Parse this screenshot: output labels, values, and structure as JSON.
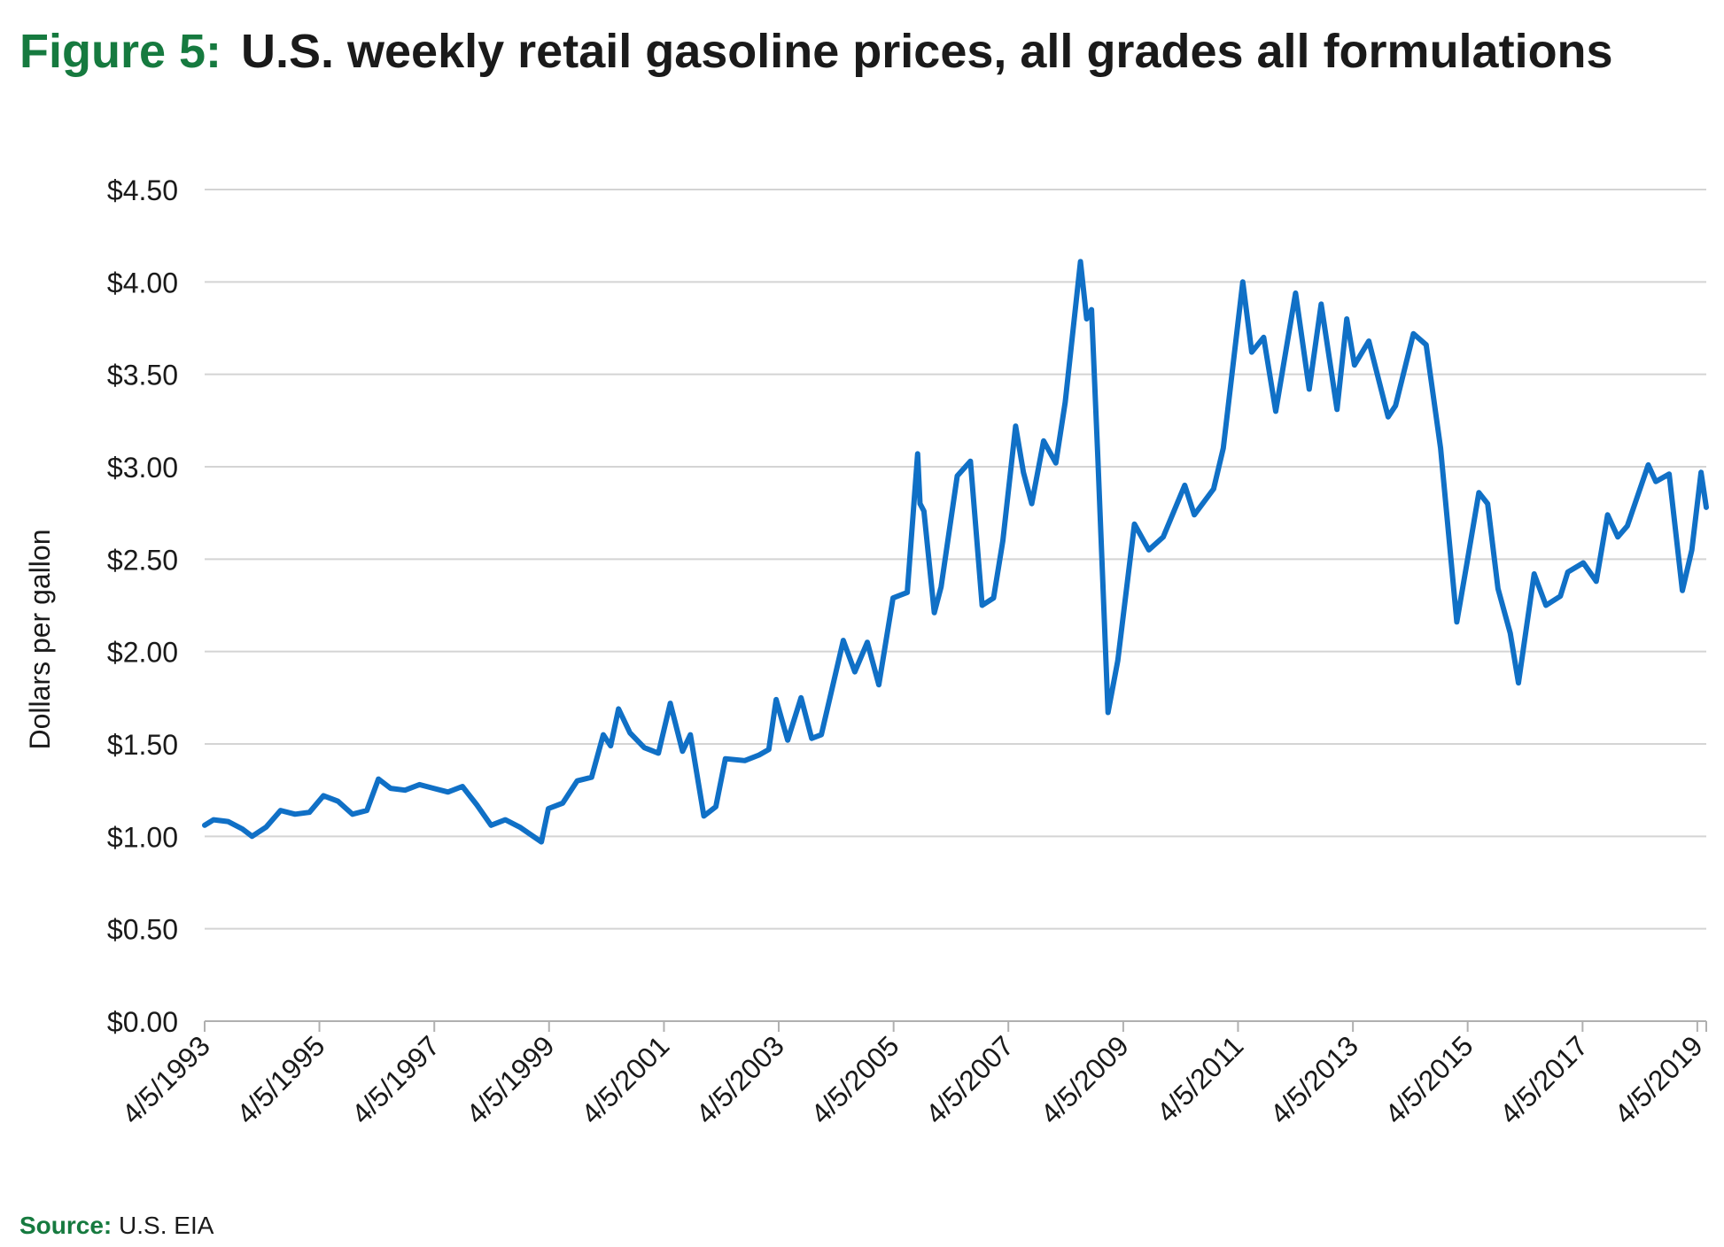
{
  "header": {
    "figure_label": "Figure 5:",
    "title": "U.S. weekly retail gasoline prices, all grades all formulations"
  },
  "footer": {
    "source_label": "Source:",
    "source_text": "U.S. EIA"
  },
  "colors": {
    "accent_green": "#167a3f",
    "series_blue": "#1070c6",
    "grid": "#d4d4d4",
    "axis": "#b0b0b0",
    "text": "#1a1a1a"
  },
  "chart_data": {
    "type": "line",
    "title": "U.S. weekly retail gasoline prices, all grades all formulations",
    "ylabel": "Dollars per gallon",
    "xlabel": "",
    "ylim": [
      0,
      4.5
    ],
    "xlim": [
      "1993-04-05",
      "2019-06-01"
    ],
    "grid": "horizontal",
    "y_ticks": [
      0,
      0.5,
      1.0,
      1.5,
      2.0,
      2.5,
      3.0,
      3.5,
      4.0,
      4.5
    ],
    "y_tick_labels": [
      "$0.00",
      "$0.50",
      "$1.00",
      "$1.50",
      "$2.00",
      "$2.50",
      "$3.00",
      "$3.50",
      "$4.00",
      "$4.50"
    ],
    "x_ticks": [
      "1993-04-05",
      "1995-04-05",
      "1997-04-05",
      "1999-04-05",
      "2001-04-05",
      "2003-04-05",
      "2005-04-05",
      "2007-04-05",
      "2009-04-05",
      "2011-04-05",
      "2013-04-05",
      "2015-04-05",
      "2017-04-05",
      "2019-04-05"
    ],
    "x_tick_labels": [
      "4/5/1993",
      "4/5/1995",
      "4/5/1997",
      "4/5/1999",
      "4/5/2001",
      "4/5/2003",
      "4/5/2005",
      "4/5/2007",
      "4/5/2009",
      "4/5/2011",
      "4/5/2013",
      "4/5/2015",
      "4/5/2017",
      "4/5/2019"
    ],
    "series": [
      {
        "color": "#1070c6",
        "points": [
          [
            "1993-04-05",
            1.06
          ],
          [
            "1993-06-01",
            1.09
          ],
          [
            "1993-09-01",
            1.08
          ],
          [
            "1993-12-01",
            1.04
          ],
          [
            "1994-02-01",
            1.0
          ],
          [
            "1994-05-01",
            1.05
          ],
          [
            "1994-08-01",
            1.14
          ],
          [
            "1994-11-01",
            1.12
          ],
          [
            "1995-02-01",
            1.13
          ],
          [
            "1995-05-01",
            1.22
          ],
          [
            "1995-08-01",
            1.19
          ],
          [
            "1995-11-01",
            1.12
          ],
          [
            "1996-02-01",
            1.14
          ],
          [
            "1996-04-15",
            1.31
          ],
          [
            "1996-07-01",
            1.26
          ],
          [
            "1996-10-01",
            1.25
          ],
          [
            "1997-01-01",
            1.28
          ],
          [
            "1997-04-01",
            1.26
          ],
          [
            "1997-07-01",
            1.24
          ],
          [
            "1997-10-01",
            1.27
          ],
          [
            "1998-01-01",
            1.17
          ],
          [
            "1998-04-01",
            1.06
          ],
          [
            "1998-07-01",
            1.09
          ],
          [
            "1998-10-01",
            1.05
          ],
          [
            "1999-02-15",
            0.97
          ],
          [
            "1999-04-01",
            1.15
          ],
          [
            "1999-07-01",
            1.18
          ],
          [
            "1999-10-01",
            1.3
          ],
          [
            "2000-01-01",
            1.32
          ],
          [
            "2000-03-15",
            1.55
          ],
          [
            "2000-05-01",
            1.49
          ],
          [
            "2000-06-20",
            1.69
          ],
          [
            "2000-09-01",
            1.56
          ],
          [
            "2000-12-01",
            1.48
          ],
          [
            "2001-03-01",
            1.45
          ],
          [
            "2001-05-15",
            1.72
          ],
          [
            "2001-08-01",
            1.46
          ],
          [
            "2001-09-20",
            1.55
          ],
          [
            "2001-12-15",
            1.11
          ],
          [
            "2002-03-01",
            1.16
          ],
          [
            "2002-05-01",
            1.42
          ],
          [
            "2002-09-01",
            1.41
          ],
          [
            "2002-12-01",
            1.44
          ],
          [
            "2003-02-01",
            1.47
          ],
          [
            "2003-03-20",
            1.74
          ],
          [
            "2003-06-01",
            1.52
          ],
          [
            "2003-08-25",
            1.75
          ],
          [
            "2003-11-01",
            1.53
          ],
          [
            "2004-01-01",
            1.55
          ],
          [
            "2004-05-20",
            2.06
          ],
          [
            "2004-08-01",
            1.89
          ],
          [
            "2004-10-20",
            2.05
          ],
          [
            "2005-01-01",
            1.82
          ],
          [
            "2005-04-01",
            2.29
          ],
          [
            "2005-07-01",
            2.32
          ],
          [
            "2005-09-05",
            3.07
          ],
          [
            "2005-09-20",
            2.8
          ],
          [
            "2005-10-15",
            2.76
          ],
          [
            "2005-12-20",
            2.21
          ],
          [
            "2006-02-01",
            2.35
          ],
          [
            "2006-05-15",
            2.95
          ],
          [
            "2006-08-07",
            3.03
          ],
          [
            "2006-10-20",
            2.25
          ],
          [
            "2007-01-01",
            2.29
          ],
          [
            "2007-03-01",
            2.6
          ],
          [
            "2007-05-21",
            3.22
          ],
          [
            "2007-07-10",
            2.97
          ],
          [
            "2007-09-01",
            2.8
          ],
          [
            "2007-11-15",
            3.14
          ],
          [
            "2008-02-01",
            3.02
          ],
          [
            "2008-04-01",
            3.35
          ],
          [
            "2008-07-07",
            4.11
          ],
          [
            "2008-08-15",
            3.8
          ],
          [
            "2008-09-15",
            3.85
          ],
          [
            "2008-10-25",
            3.05
          ],
          [
            "2008-12-29",
            1.67
          ],
          [
            "2009-03-01",
            1.95
          ],
          [
            "2009-06-15",
            2.69
          ],
          [
            "2009-09-15",
            2.55
          ],
          [
            "2009-12-15",
            2.62
          ],
          [
            "2010-05-01",
            2.9
          ],
          [
            "2010-07-01",
            2.74
          ],
          [
            "2010-11-01",
            2.88
          ],
          [
            "2011-01-01",
            3.1
          ],
          [
            "2011-05-05",
            4.0
          ],
          [
            "2011-07-01",
            3.62
          ],
          [
            "2011-09-15",
            3.7
          ],
          [
            "2011-12-01",
            3.3
          ],
          [
            "2012-04-05",
            3.94
          ],
          [
            "2012-07-01",
            3.42
          ],
          [
            "2012-09-15",
            3.88
          ],
          [
            "2012-12-25",
            3.31
          ],
          [
            "2013-02-25",
            3.8
          ],
          [
            "2013-04-15",
            3.55
          ],
          [
            "2013-07-15",
            3.68
          ],
          [
            "2013-11-15",
            3.27
          ],
          [
            "2014-01-01",
            3.33
          ],
          [
            "2014-04-25",
            3.72
          ],
          [
            "2014-07-15",
            3.66
          ],
          [
            "2014-10-15",
            3.1
          ],
          [
            "2015-01-26",
            2.16
          ],
          [
            "2015-04-01",
            2.48
          ],
          [
            "2015-06-15",
            2.86
          ],
          [
            "2015-08-10",
            2.8
          ],
          [
            "2015-10-15",
            2.34
          ],
          [
            "2016-01-01",
            2.1
          ],
          [
            "2016-02-22",
            1.83
          ],
          [
            "2016-06-01",
            2.42
          ],
          [
            "2016-08-15",
            2.25
          ],
          [
            "2016-11-15",
            2.3
          ],
          [
            "2017-01-01",
            2.43
          ],
          [
            "2017-04-10",
            2.48
          ],
          [
            "2017-07-01",
            2.38
          ],
          [
            "2017-09-11",
            2.74
          ],
          [
            "2017-11-15",
            2.62
          ],
          [
            "2018-01-15",
            2.68
          ],
          [
            "2018-05-28",
            3.01
          ],
          [
            "2018-07-15",
            2.92
          ],
          [
            "2018-10-08",
            2.96
          ],
          [
            "2018-12-31",
            2.33
          ],
          [
            "2019-03-01",
            2.55
          ],
          [
            "2019-04-29",
            2.97
          ],
          [
            "2019-06-01",
            2.78
          ]
        ]
      }
    ]
  }
}
